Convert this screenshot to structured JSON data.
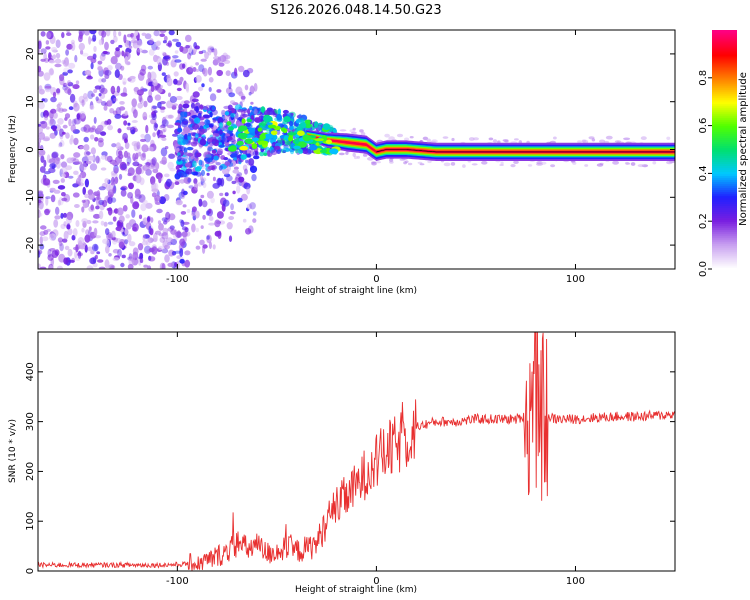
{
  "figure_title": "S126.2026.048.14.50.G23",
  "chart_data": [
    {
      "type": "heatmap",
      "title": "S126.2026.048.14.50.G23",
      "xlabel": "Height of straight line (km)",
      "ylabel": "Frequency (Hz)",
      "xlim": [
        -170,
        150
      ],
      "ylim": [
        -25,
        25
      ],
      "x_ticks": [
        -100,
        0,
        100
      ],
      "y_ticks": [
        -20,
        -10,
        0,
        10,
        20
      ],
      "colorbar": {
        "label": "Normalized spectral amplitude",
        "range": [
          0,
          1
        ],
        "ticks": [
          0.0,
          0.2,
          0.4,
          0.6,
          0.8
        ],
        "tick_labels": [
          "0.0",
          "0.2",
          "0.4",
          "0.6",
          "0.8"
        ],
        "colormap": [
          "#ffffff",
          "#c8a0f0",
          "#7a1fe0",
          "#2020ff",
          "#00c8ff",
          "#00e070",
          "#50ff00",
          "#ffff00",
          "#ff8000",
          "#ff0000",
          "#ff0080"
        ]
      },
      "ridge_frequency_track": {
        "x": [
          -90,
          -70,
          -50,
          -35,
          -25,
          -15,
          -5,
          0,
          5,
          15,
          30,
          60,
          80,
          100,
          150
        ],
        "y": [
          2,
          3,
          4,
          3,
          2,
          1.5,
          1,
          -0.5,
          0,
          0,
          -0.5,
          -0.5,
          -0.5,
          -0.5,
          -0.5
        ]
      }
    },
    {
      "type": "line",
      "xlabel": "Height of straight line (km)",
      "ylabel": "SNR (10 * v/v)",
      "xlim": [
        -170,
        150
      ],
      "ylim": [
        0,
        480
      ],
      "x_ticks": [
        -100,
        0,
        100
      ],
      "y_ticks": [
        0,
        100,
        200,
        300,
        400
      ],
      "series": [
        {
          "name": "SNR",
          "color": "#e83030",
          "x": [
            -170,
            -150,
            -130,
            -110,
            -100,
            -90,
            -85,
            -80,
            -75,
            -70,
            -65,
            -60,
            -55,
            -50,
            -45,
            -40,
            -35,
            -30,
            -25,
            -20,
            -15,
            -10,
            -5,
            0,
            5,
            10,
            15,
            20,
            25,
            30,
            40,
            50,
            60,
            70,
            75,
            78,
            80,
            82,
            84,
            86,
            90,
            100,
            110,
            120,
            130,
            140,
            150
          ],
          "values": [
            12,
            12,
            12,
            12,
            13,
            15,
            20,
            30,
            40,
            55,
            45,
            50,
            35,
            40,
            45,
            40,
            45,
            55,
            100,
            130,
            150,
            170,
            200,
            220,
            240,
            250,
            270,
            290,
            295,
            300,
            300,
            305,
            305,
            305,
            310,
            320,
            330,
            300,
            310,
            310,
            305,
            305,
            308,
            310,
            310,
            312,
            315
          ]
        }
      ]
    }
  ]
}
